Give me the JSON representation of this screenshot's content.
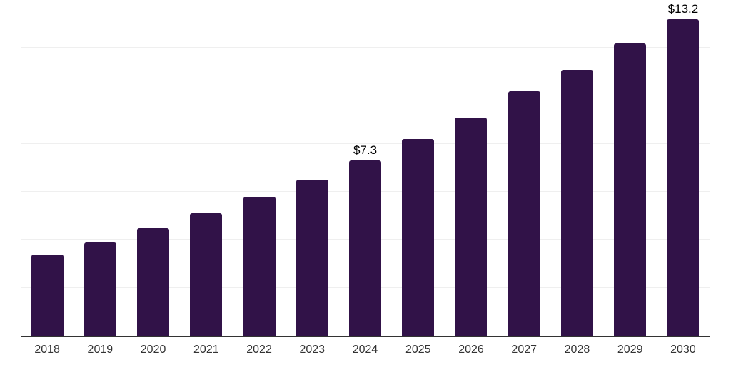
{
  "chart_data": {
    "type": "bar",
    "title": "",
    "xlabel": "",
    "ylabel": "",
    "categories": [
      "2018",
      "2019",
      "2020",
      "2021",
      "2022",
      "2023",
      "2024",
      "2025",
      "2026",
      "2027",
      "2028",
      "2029",
      "2030"
    ],
    "values": [
      3.4,
      3.9,
      4.5,
      5.1,
      5.8,
      6.5,
      7.3,
      8.2,
      9.1,
      10.2,
      11.1,
      12.2,
      13.2
    ],
    "data_labels": [
      "",
      "",
      "",
      "",
      "",
      "",
      "$7.3",
      "",
      "",
      "",
      "",
      "",
      "$13.2"
    ],
    "ylim": [
      0,
      14
    ],
    "grid": {
      "visible": true,
      "step": 2,
      "orientation": "horizontal"
    },
    "legend": {
      "visible": false
    },
    "colors": {
      "bar": "#311248",
      "gridline": "#efefef",
      "axis_line": "#333333",
      "tick_label": "#333333",
      "data_label": "#000000",
      "background": "#ffffff"
    }
  }
}
